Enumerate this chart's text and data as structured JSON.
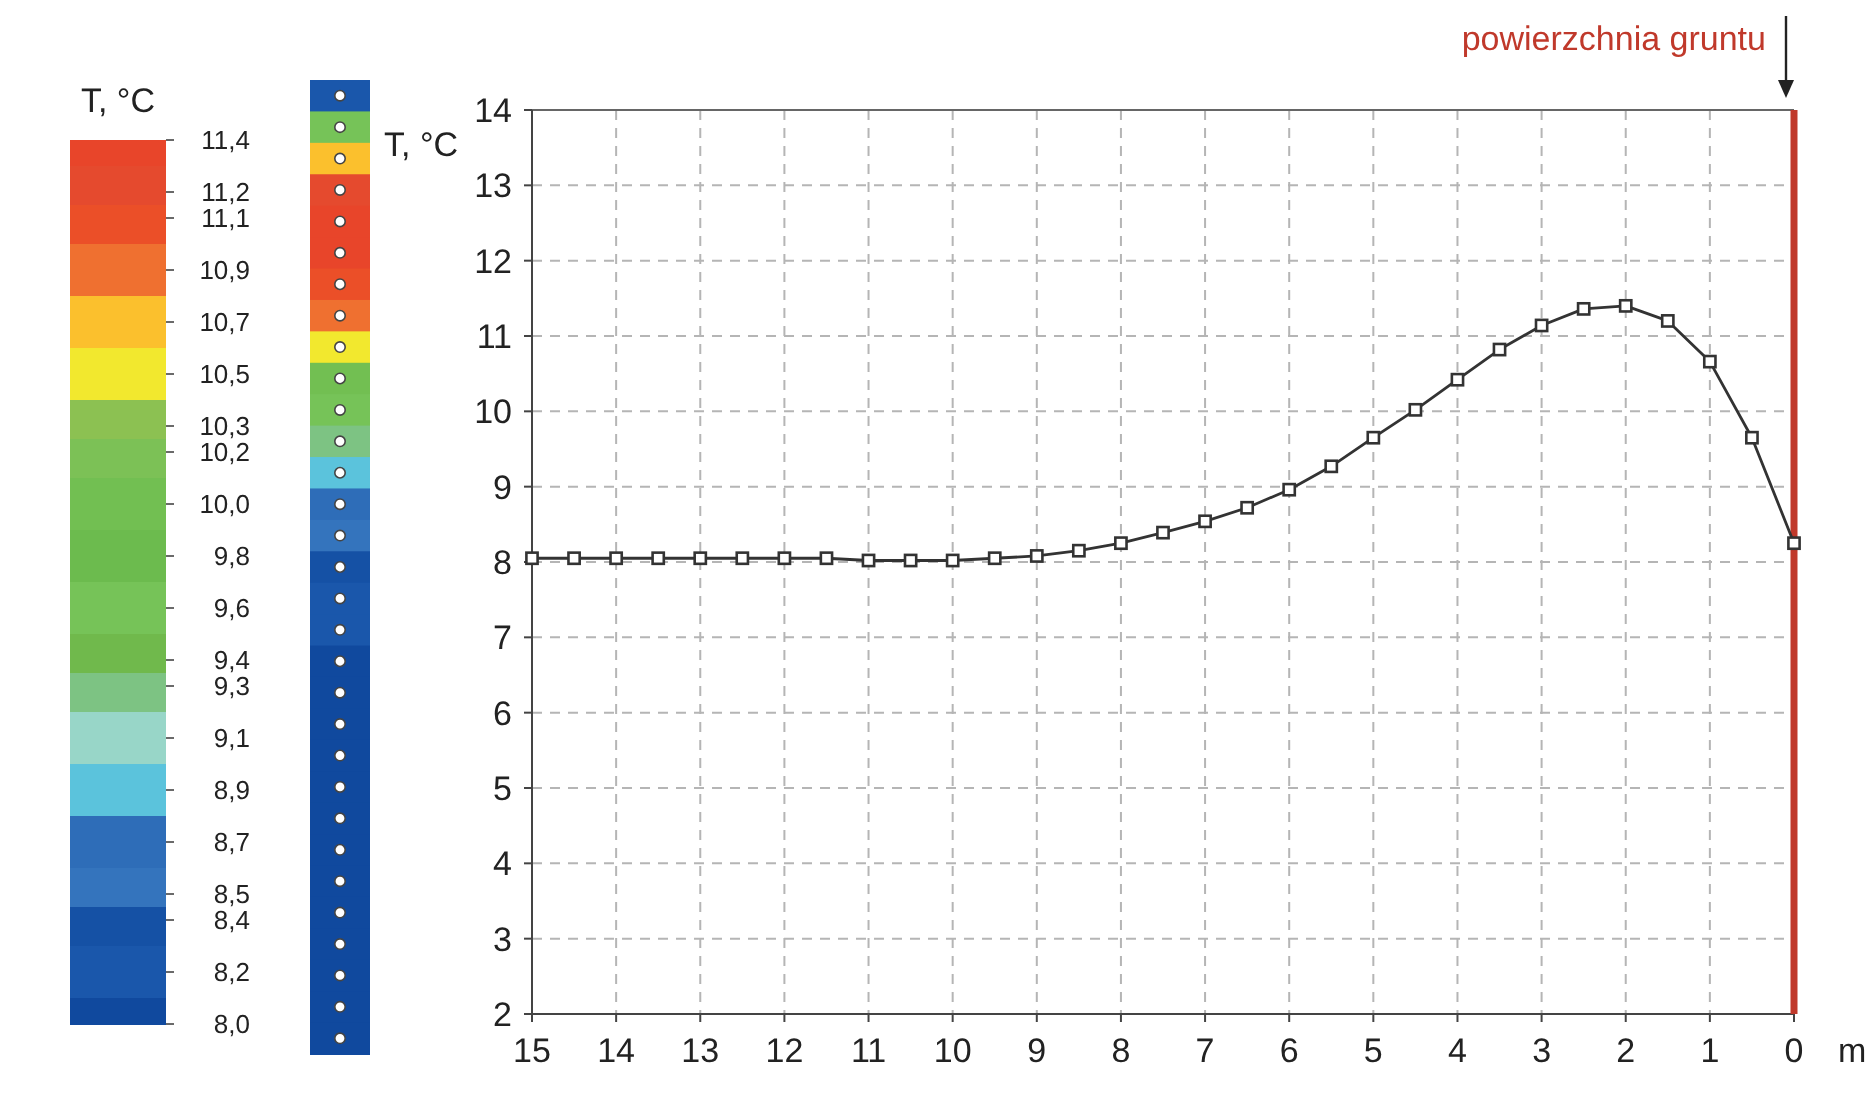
{
  "chart_data": [
    {
      "type": "heatmap",
      "clabel": "T, °C",
      "categories": [
        null
      ],
      "y_categories": [
        null,
        null,
        null,
        null,
        null,
        null,
        null,
        null,
        null,
        null,
        null,
        null,
        null,
        null,
        null,
        null,
        null,
        null,
        null,
        null,
        null,
        null,
        null,
        null,
        null,
        null,
        null,
        null,
        null,
        null,
        null
      ],
      "cells": [
        [
          8.2
        ],
        [
          9.6
        ],
        [
          10.7
        ],
        [
          11.2
        ],
        [
          11.4
        ],
        [
          11.4
        ],
        [
          11.1
        ],
        [
          10.9
        ],
        [
          10.5
        ],
        [
          10.0
        ],
        [
          9.6
        ],
        [
          9.3
        ],
        [
          8.9
        ],
        [
          8.7
        ],
        [
          8.5
        ],
        [
          8.4
        ],
        [
          8.2
        ],
        [
          8.2
        ],
        [
          8.0
        ],
        [
          8.0
        ],
        [
          8.0
        ],
        [
          8.0
        ],
        [
          8.0
        ],
        [
          8.0
        ],
        [
          8.0
        ],
        [
          8.0
        ],
        [
          8.0
        ],
        [
          8.0
        ],
        [
          8.0
        ],
        [
          8.0
        ],
        [
          8.0
        ]
      ],
      "clim": [
        11.4,
        8.0
      ],
      "cticks": [
        {
          "value": 11.4,
          "label": "11,4"
        },
        {
          "value": 11.2,
          "label": "11,2"
        },
        {
          "value": 11.1,
          "label": "11,1"
        },
        {
          "value": 10.9,
          "label": "10,9"
        },
        {
          "value": 10.7,
          "label": "10,7"
        },
        {
          "value": 10.5,
          "label": "10,5"
        },
        {
          "value": 10.3,
          "label": "10,3"
        },
        {
          "value": 10.2,
          "label": "10,2"
        },
        {
          "value": 10.0,
          "label": "10,0"
        },
        {
          "value": 9.8,
          "label": "9,8"
        },
        {
          "value": 9.6,
          "label": "9,6"
        },
        {
          "value": 9.4,
          "label": "9,4"
        },
        {
          "value": 9.3,
          "label": "9,3"
        },
        {
          "value": 9.1,
          "label": "9,1"
        },
        {
          "value": 8.9,
          "label": "8,9"
        },
        {
          "value": 8.7,
          "label": "8,7"
        },
        {
          "value": 8.5,
          "label": "8,5"
        },
        {
          "value": 8.4,
          "label": "8,4"
        },
        {
          "value": 8.2,
          "label": "8,2"
        },
        {
          "value": 8.0,
          "label": "8,0"
        }
      ],
      "colors": [
        "#e8452a",
        "#e54a2e",
        "#eb4f28",
        "#ef7030",
        "#fbc02d",
        "#f2e82e",
        "#8cc152",
        "#7cc156",
        "#72bf52",
        "#6cbb4e",
        "#76c358",
        "#70b94c",
        "#7dc383",
        "#98d6c8",
        "#5bc3dc",
        "#2e6db8",
        "#3474bd",
        "#1551a5",
        "#1a57ab",
        "#10499e"
      ]
    },
    {
      "type": "line",
      "ylabel": "T, °C",
      "xlabel": "m",
      "x": [
        15,
        14.5,
        14,
        13.5,
        13,
        12.5,
        12,
        11.5,
        11,
        10.5,
        10,
        9.5,
        9,
        8.5,
        8,
        7.5,
        7,
        6.5,
        6,
        5.5,
        5,
        4.5,
        4,
        3.5,
        3,
        2.5,
        2,
        1.5,
        1,
        0.5,
        0
      ],
      "series": [
        {
          "color": "#333333",
          "values": [
            8.05,
            8.05,
            8.05,
            8.05,
            8.05,
            8.05,
            8.05,
            8.05,
            8.02,
            8.02,
            8.02,
            8.05,
            8.08,
            8.15,
            8.25,
            8.39,
            8.54,
            8.72,
            8.96,
            9.27,
            9.65,
            10.02,
            10.42,
            10.82,
            11.14,
            11.36,
            11.4,
            11.2,
            10.66,
            9.65,
            8.25
          ]
        }
      ],
      "xlim": [
        15,
        0
      ],
      "xticks": [
        15,
        14,
        13,
        12,
        11,
        10,
        9,
        8,
        7,
        6,
        5,
        4,
        3,
        2,
        1,
        0
      ],
      "ylim": [
        2,
        14
      ],
      "yticks": [
        2,
        3,
        4,
        5,
        6,
        7,
        8,
        9,
        10,
        11,
        12,
        13,
        14
      ],
      "grid": true,
      "marker": "square",
      "line_style": "solid",
      "ref_lines": [
        {
          "axis": "x",
          "value": 0,
          "label": "powierzchnia gruntu",
          "color": "#c0392b"
        }
      ]
    }
  ]
}
